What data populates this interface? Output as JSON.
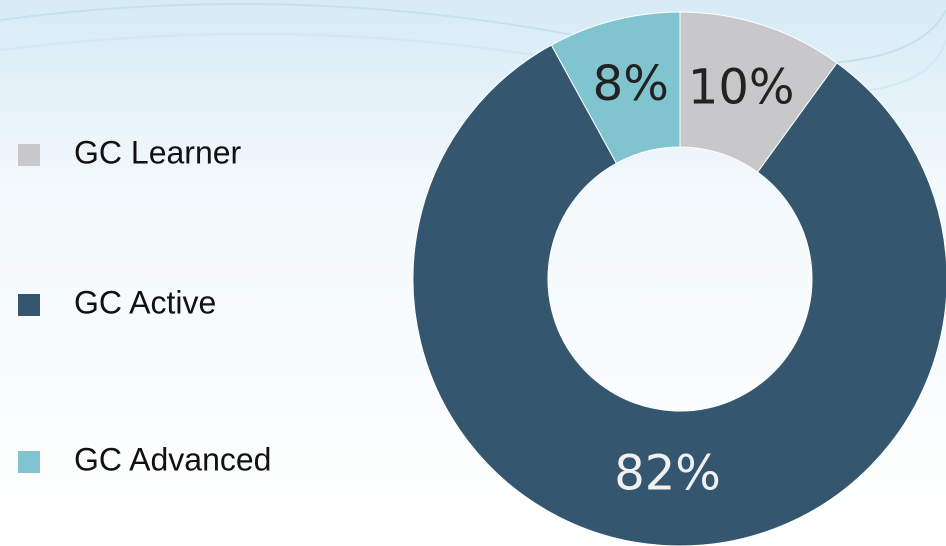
{
  "chart_data": {
    "type": "pie",
    "categories": [
      "GC Learner",
      "GC Active",
      "GC Advanced"
    ],
    "values": [
      10,
      82,
      8
    ],
    "value_labels": [
      "10%",
      "82%",
      "8%"
    ],
    "colors": [
      "#c8c8ca",
      "#34566f",
      "#80c4d0"
    ],
    "legend": "left"
  }
}
